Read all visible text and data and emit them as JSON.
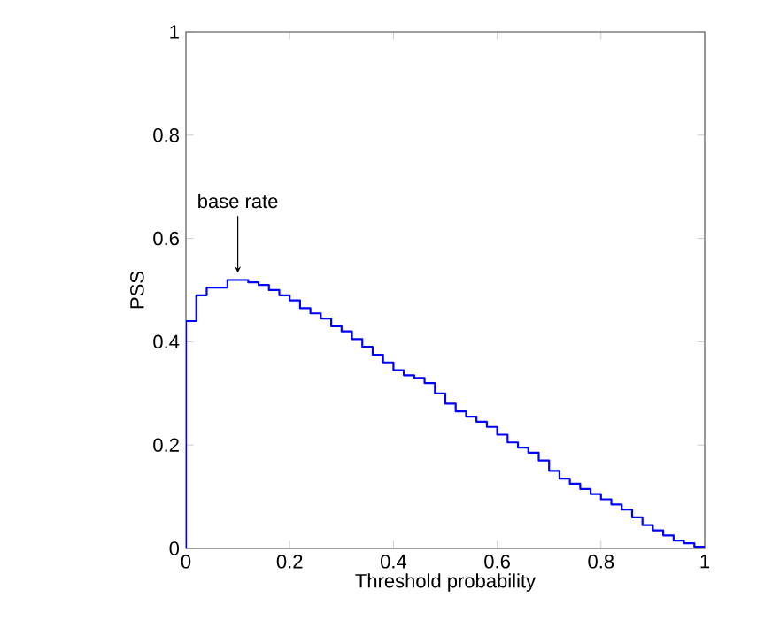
{
  "chart_data": {
    "type": "step",
    "xlabel": "Threshold probability",
    "ylabel": "PSS",
    "x": [
      0,
      0,
      0.02,
      0.04,
      0.06,
      0.08,
      0.1,
      0.12,
      0.14,
      0.16,
      0.18,
      0.2,
      0.22,
      0.24,
      0.26,
      0.28,
      0.3,
      0.32,
      0.34,
      0.36,
      0.38,
      0.4,
      0.42,
      0.44,
      0.46,
      0.48,
      0.5,
      0.52,
      0.54,
      0.56,
      0.58,
      0.6,
      0.62,
      0.64,
      0.66,
      0.68,
      0.7,
      0.72,
      0.74,
      0.76,
      0.78,
      0.8,
      0.82,
      0.84,
      0.86,
      0.88,
      0.9,
      0.92,
      0.94,
      0.96,
      0.98,
      1
    ],
    "series": [
      {
        "color": "#0000ff",
        "values": [
          0,
          0.44,
          0.49,
          0.505,
          0.505,
          0.52,
          0.52,
          0.515,
          0.51,
          0.5,
          0.49,
          0.48,
          0.465,
          0.455,
          0.445,
          0.43,
          0.42,
          0.405,
          0.39,
          0.375,
          0.36,
          0.345,
          0.335,
          0.33,
          0.32,
          0.3,
          0.28,
          0.265,
          0.255,
          0.245,
          0.235,
          0.22,
          0.205,
          0.195,
          0.185,
          0.17,
          0.15,
          0.135,
          0.125,
          0.115,
          0.105,
          0.095,
          0.085,
          0.075,
          0.06,
          0.045,
          0.035,
          0.025,
          0.015,
          0.01,
          0.003,
          0.003
        ]
      }
    ],
    "xlim": [
      0,
      1
    ],
    "ylim": [
      0,
      1
    ],
    "xticks": [
      0,
      0.2,
      0.4,
      0.6,
      0.8,
      1
    ],
    "yticks": [
      0,
      0.2,
      0.4,
      0.6,
      0.8,
      1
    ],
    "annotations": [
      {
        "text": "base rate",
        "x": 0.1,
        "y": 0.52
      }
    ]
  }
}
